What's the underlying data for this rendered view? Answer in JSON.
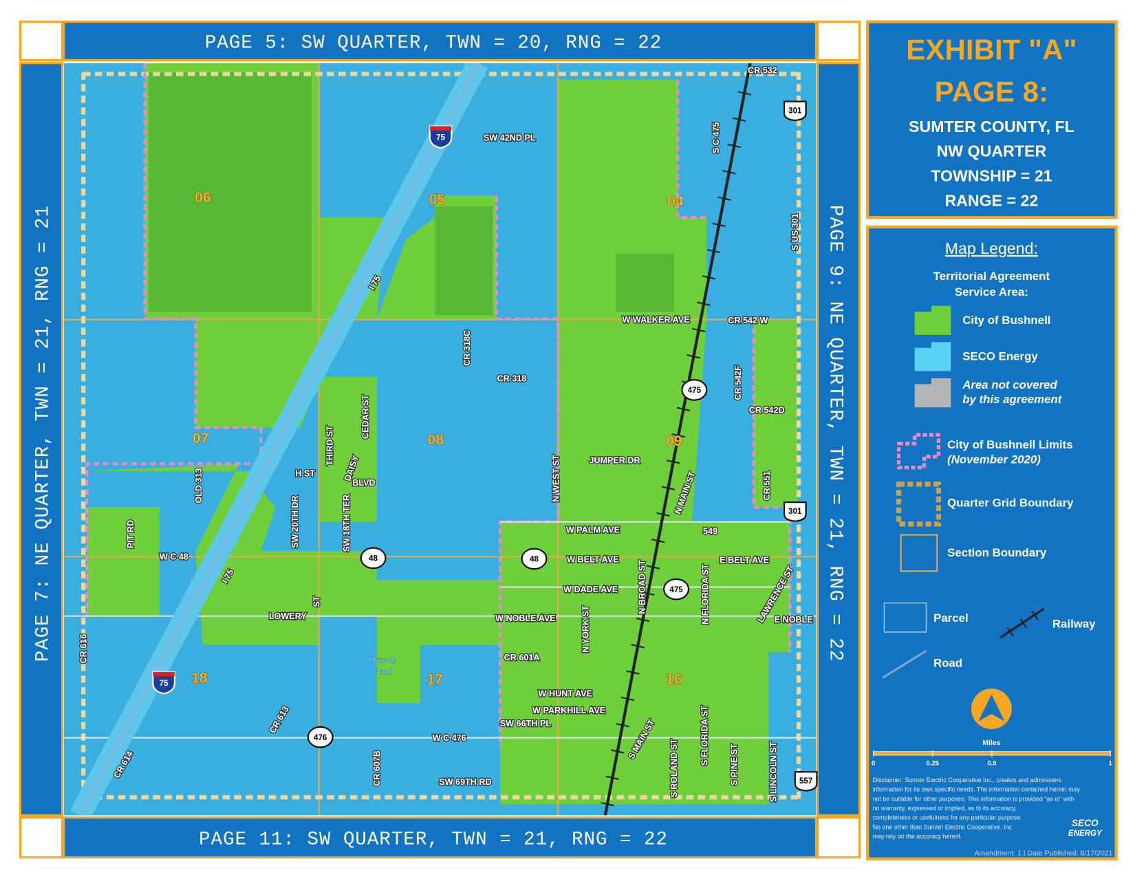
{
  "banners": {
    "top": "PAGE 5: SW QUARTER, TWN = 20, RNG = 22",
    "left": "PAGE 7: NE QUARTER, TWN = 21, RNG = 21",
    "right": "PAGE 9: NE QUARTER, TWN = 21, RNG = 22",
    "bottom": "PAGE 11: SW QUARTER, TWN = 21, RNG = 22"
  },
  "header": {
    "title": "EXHIBIT \"A\"",
    "page": "PAGE 8:",
    "lines": [
      "SUMTER COUNTY, FL",
      "NW QUARTER",
      "TOWNSHIP = 21",
      "RANGE = 22"
    ]
  },
  "legend": {
    "title": "Map Legend:",
    "subtitle": [
      "Territorial Agreement",
      "Service Area:"
    ],
    "items": [
      [
        "City of Bushnell"
      ],
      [
        "SECO Energy"
      ],
      [
        "Area not covered",
        "by this agreement"
      ],
      [
        "City of Bushnell Limits",
        "(November 2020)"
      ],
      [
        "Quarter Grid Boundary"
      ],
      [
        "Section Boundary"
      ],
      [
        "Parcel"
      ],
      [
        "Railway"
      ],
      [
        "Road"
      ]
    ],
    "scale_title": "Miles",
    "scale_ticks": [
      0,
      0.25,
      0.5,
      1
    ],
    "disclaimer": [
      "Disclaimer: Sumter Electric Cooperative Inc., creates and administers",
      "information for its own specific needs. The information contained herein may",
      "not be suitable for other purposes. This information is provided \"as is\" with",
      "no warranty, expressed or implied, as to its accuracy,",
      "completeness or usefulness for any particular purpose.",
      "No one other than Sumter Electric Cooperative, Inc.",
      "may rely on the accuracy hereof."
    ],
    "logo": [
      "SECO",
      "ENERGY"
    ],
    "footer": "Amendment: 1 | Date Published: 8/17/2021"
  },
  "sections": [
    "06",
    "05",
    "04",
    "07",
    "08",
    "09",
    "18",
    "17",
    "16"
  ],
  "shields": [
    "75",
    "75",
    "301",
    "301",
    "475",
    "475",
    "48",
    "48",
    "476",
    "557"
  ],
  "water": [
    "Drawdy",
    "Pond"
  ],
  "map_labels": [
    "CR 532",
    "SW 42ND PL",
    "I 75",
    "S C 475",
    "S US 301",
    "W WALKER AVE",
    "CR 542 W",
    "CR 318C",
    "CR 318",
    "CR 542F",
    "CR 542D",
    "CEDAR ST",
    "THIRD ST",
    "H ST",
    "DAISY",
    "BLVD",
    "OLD 313",
    "N WEST ST",
    "JUMPER DR",
    "N MAIN ST",
    "CR 551",
    "PIT RD",
    "SW 20TH DR",
    "SW 18TH TER",
    "W PALM AVE",
    "549",
    "W C 48",
    "W BELT AVE",
    "E BELT AVE",
    "N BROAD ST",
    "N FLORIDA ST",
    "LAWRENCE ST",
    "W DADE AVE",
    "I 75",
    "LOWERY",
    "ST",
    "W NOBLE AVE",
    "E NOBLE",
    "N YORK ST",
    "CR 616",
    "CR 601A",
    "W HUNT AVE",
    "W PARKHILL AVE",
    "SW 66TH PL",
    "CR 613",
    "W C 476",
    "S MAIN ST",
    "CR 614",
    "CR 607B",
    "S ROLAND ST",
    "S FLORIDA ST",
    "S PINE ST",
    "S LINCOLN ST",
    "SW 69TH RD"
  ]
}
